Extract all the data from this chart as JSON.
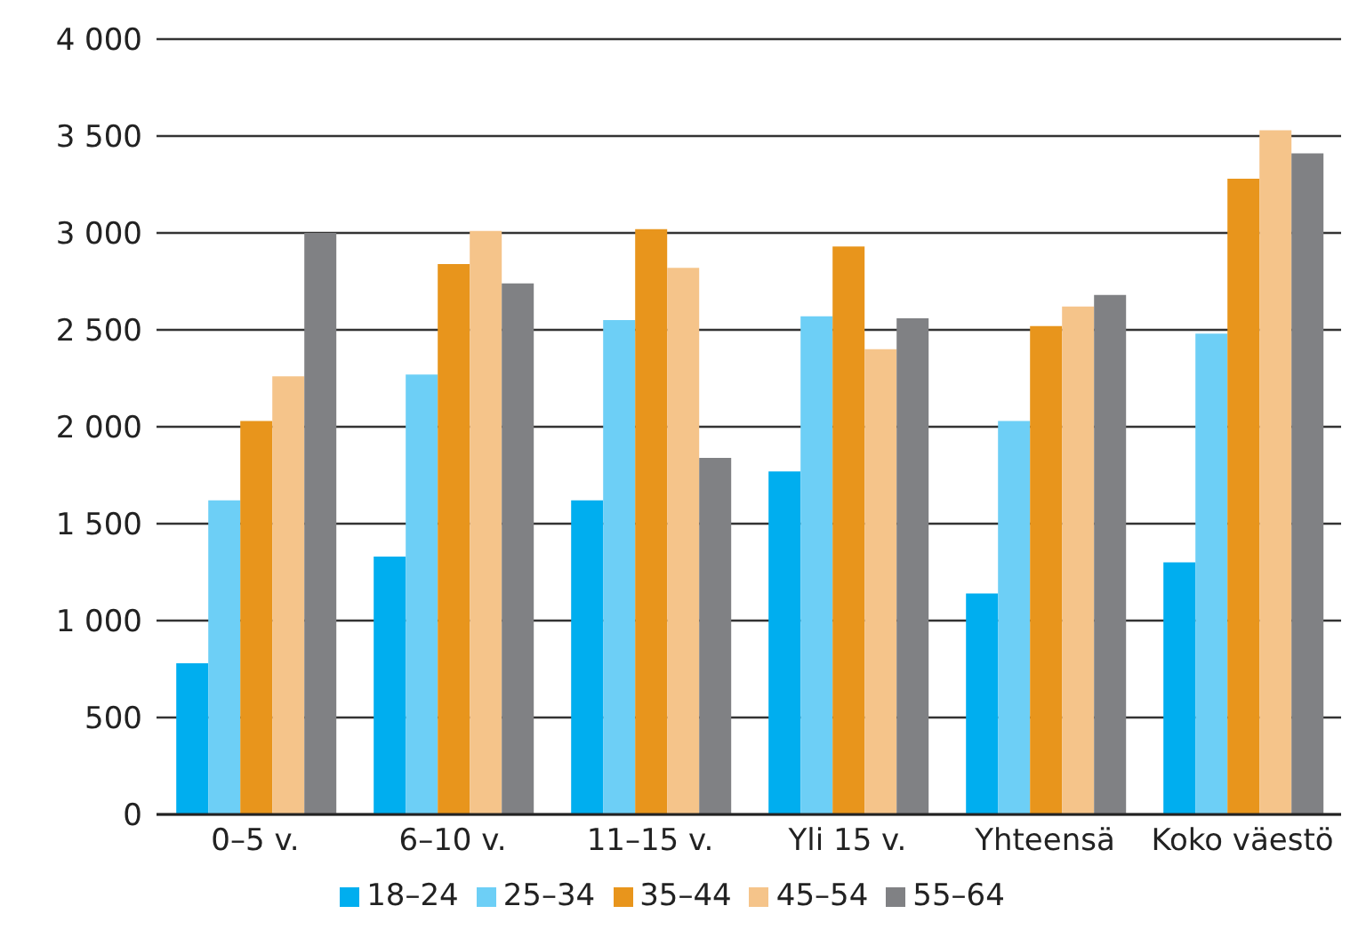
{
  "chart_data": {
    "type": "bar",
    "categories": [
      "0–5 v.",
      "6–10 v.",
      "11–15 v.",
      "Yli 15 v.",
      "Yhteensä",
      "Koko väestö"
    ],
    "series": [
      {
        "name": "18–24",
        "color": "#00aeef",
        "values": [
          780,
          1330,
          1620,
          1770,
          1140,
          1300
        ]
      },
      {
        "name": "25–34",
        "color": "#6dcff6",
        "values": [
          1620,
          2270,
          2550,
          2570,
          2030,
          2480
        ]
      },
      {
        "name": "35–44",
        "color": "#e8951c",
        "values": [
          2030,
          2840,
          3020,
          2930,
          2520,
          3280
        ]
      },
      {
        "name": "45–54",
        "color": "#f5c48a",
        "values": [
          2260,
          3010,
          2820,
          2400,
          2620,
          3530
        ]
      },
      {
        "name": "55–64",
        "color": "#808184",
        "values": [
          3000,
          2740,
          1840,
          2560,
          2680,
          3410
        ]
      }
    ],
    "ylim": [
      0,
      4000
    ],
    "yticks": [
      0,
      500,
      {
        "value": 1000,
        "label": "1 000"
      },
      {
        "value": 1500,
        "label": "1 500"
      },
      {
        "value": 2000,
        "label": "2 000"
      },
      {
        "value": 2500,
        "label": "2 500"
      },
      {
        "value": 3000,
        "label": "3 000"
      },
      {
        "value": 3500,
        "label": "3 500"
      },
      {
        "value": 4000,
        "label": "4 000"
      }
    ],
    "grid": "y",
    "legend": "bottom"
  }
}
